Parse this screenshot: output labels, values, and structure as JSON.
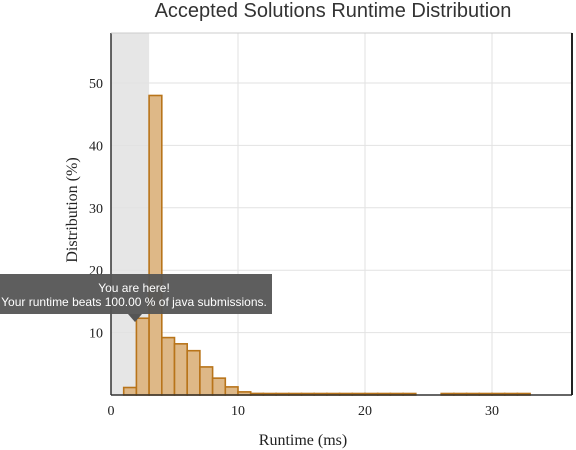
{
  "chart_data": {
    "type": "bar",
    "title": "Accepted Solutions Runtime Distribution",
    "xlabel": "Runtime (ms)",
    "ylabel": "Distribution (%)",
    "xlim": [
      0,
      35
    ],
    "ylim": [
      0,
      58
    ],
    "x_ticks": [
      0,
      10,
      20,
      30
    ],
    "y_ticks": [
      10,
      20,
      30,
      40,
      50
    ],
    "bin_width_ms": 1,
    "bins": [
      {
        "x": 1,
        "value": 1.2
      },
      {
        "x": 2,
        "value": 12.3
      },
      {
        "x": 3,
        "value": 48.0
      },
      {
        "x": 4,
        "value": 9.2
      },
      {
        "x": 5,
        "value": 8.2
      },
      {
        "x": 6,
        "value": 7.1
      },
      {
        "x": 7,
        "value": 4.5
      },
      {
        "x": 8,
        "value": 2.7
      },
      {
        "x": 9,
        "value": 1.3
      },
      {
        "x": 10,
        "value": 0.5
      },
      {
        "x": 11,
        "value": 0.25
      },
      {
        "x": 12,
        "value": 0.15
      },
      {
        "x": 13,
        "value": 0.1
      },
      {
        "x": 14,
        "value": 0.1
      },
      {
        "x": 15,
        "value": 0.1
      },
      {
        "x": 16,
        "value": 0.1
      },
      {
        "x": 17,
        "value": 0.1
      },
      {
        "x": 18,
        "value": 0.1
      },
      {
        "x": 19,
        "value": 0.1
      },
      {
        "x": 20,
        "value": 0.1
      },
      {
        "x": 21,
        "value": 0.1
      },
      {
        "x": 22,
        "value": 0.1
      },
      {
        "x": 23,
        "value": 0.1
      },
      {
        "x": 26,
        "value": 0.1
      },
      {
        "x": 27,
        "value": 0.1
      },
      {
        "x": 28,
        "value": 0.1
      },
      {
        "x": 29,
        "value": 0.1
      },
      {
        "x": 30,
        "value": 0.1
      },
      {
        "x": 31,
        "value": 0.1
      },
      {
        "x": 32,
        "value": 0.1
      }
    ],
    "highlight_range": [
      0,
      3
    ],
    "grid": true
  },
  "tooltip": {
    "line1": "You are here!",
    "line2": "Your runtime beats 100.00 % of java submissions."
  },
  "colors": {
    "bar_fill": "#deb887",
    "bar_stroke": "#b8741a",
    "highlight": "#e6e6e6",
    "tooltip_bg": "#555555"
  }
}
